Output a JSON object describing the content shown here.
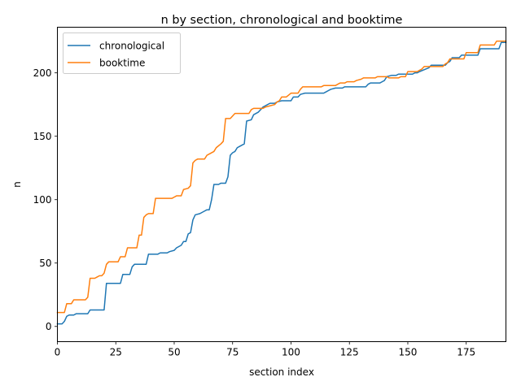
{
  "chart_data": {
    "type": "line",
    "title": "n by section, chronological and booktime",
    "xlabel": "section index",
    "ylabel": "n",
    "xlim": [
      0,
      192
    ],
    "ylim": [
      -12,
      236
    ],
    "xticks": [
      0,
      25,
      50,
      75,
      100,
      125,
      150,
      175
    ],
    "yticks": [
      0,
      50,
      100,
      150,
      200
    ],
    "grid": false,
    "legend": "top-left",
    "series": [
      {
        "name": "chronological",
        "color": "#1f77b4",
        "points": [
          [
            0,
            2
          ],
          [
            2,
            2
          ],
          [
            3,
            4
          ],
          [
            4,
            8
          ],
          [
            5,
            9
          ],
          [
            7,
            9
          ],
          [
            8,
            10
          ],
          [
            13,
            10
          ],
          [
            14,
            13
          ],
          [
            20,
            13
          ],
          [
            21,
            34
          ],
          [
            27,
            34
          ],
          [
            28,
            41
          ],
          [
            31,
            41
          ],
          [
            32,
            47
          ],
          [
            33,
            49
          ],
          [
            38,
            49
          ],
          [
            39,
            57
          ],
          [
            43,
            57
          ],
          [
            44,
            58
          ],
          [
            47,
            58
          ],
          [
            48,
            59
          ],
          [
            50,
            60
          ],
          [
            51,
            62
          ],
          [
            53,
            64
          ],
          [
            54,
            67
          ],
          [
            55,
            67
          ],
          [
            56,
            73
          ],
          [
            57,
            74
          ],
          [
            58,
            84
          ],
          [
            59,
            88
          ],
          [
            61,
            89
          ],
          [
            63,
            91
          ],
          [
            64,
            92
          ],
          [
            65,
            92
          ],
          [
            66,
            100
          ],
          [
            67,
            112
          ],
          [
            69,
            112
          ],
          [
            70,
            113
          ],
          [
            72,
            113
          ],
          [
            73,
            118
          ],
          [
            74,
            135
          ],
          [
            75,
            137
          ],
          [
            76,
            138
          ],
          [
            77,
            141
          ],
          [
            78,
            142
          ],
          [
            80,
            144
          ],
          [
            81,
            162
          ],
          [
            83,
            163
          ],
          [
            84,
            167
          ],
          [
            86,
            169
          ],
          [
            88,
            173
          ],
          [
            90,
            175
          ],
          [
            91,
            176
          ],
          [
            93,
            176
          ],
          [
            94,
            177
          ],
          [
            96,
            178
          ],
          [
            100,
            178
          ],
          [
            101,
            181
          ],
          [
            103,
            181
          ],
          [
            104,
            183
          ],
          [
            106,
            184
          ],
          [
            114,
            184
          ],
          [
            115,
            185
          ],
          [
            116,
            186
          ],
          [
            117,
            187
          ],
          [
            119,
            188
          ],
          [
            122,
            188
          ],
          [
            123,
            189
          ],
          [
            132,
            189
          ],
          [
            133,
            191
          ],
          [
            134,
            192
          ],
          [
            138,
            192
          ],
          [
            139,
            193
          ],
          [
            140,
            194
          ],
          [
            141,
            197
          ],
          [
            143,
            198
          ],
          [
            145,
            198
          ],
          [
            146,
            199
          ],
          [
            152,
            199
          ],
          [
            153,
            200
          ],
          [
            154,
            200
          ],
          [
            155,
            201
          ],
          [
            159,
            204
          ],
          [
            160,
            206
          ],
          [
            166,
            206
          ],
          [
            167,
            208
          ],
          [
            168,
            209
          ],
          [
            169,
            212
          ],
          [
            172,
            212
          ],
          [
            173,
            214
          ],
          [
            177,
            214
          ],
          [
            180,
            214
          ],
          [
            181,
            219
          ],
          [
            189,
            219
          ],
          [
            190,
            224
          ],
          [
            192,
            224
          ]
        ]
      },
      {
        "name": "booktime",
        "color": "#ff7f0e",
        "points": [
          [
            0,
            11
          ],
          [
            3,
            11
          ],
          [
            4,
            18
          ],
          [
            6,
            18
          ],
          [
            7,
            21
          ],
          [
            12,
            21
          ],
          [
            13,
            23
          ],
          [
            14,
            38
          ],
          [
            16,
            38
          ],
          [
            17,
            39
          ],
          [
            18,
            40
          ],
          [
            19,
            40
          ],
          [
            20,
            42
          ],
          [
            21,
            49
          ],
          [
            22,
            51
          ],
          [
            26,
            51
          ],
          [
            27,
            55
          ],
          [
            29,
            55
          ],
          [
            30,
            62
          ],
          [
            34,
            62
          ],
          [
            35,
            72
          ],
          [
            36,
            72
          ],
          [
            37,
            86
          ],
          [
            38,
            88
          ],
          [
            39,
            89
          ],
          [
            41,
            89
          ],
          [
            42,
            101
          ],
          [
            49,
            101
          ],
          [
            50,
            102
          ],
          [
            51,
            103
          ],
          [
            53,
            103
          ],
          [
            54,
            108
          ],
          [
            56,
            109
          ],
          [
            57,
            111
          ],
          [
            58,
            129
          ],
          [
            59,
            131
          ],
          [
            60,
            132
          ],
          [
            63,
            132
          ],
          [
            64,
            135
          ],
          [
            65,
            136
          ],
          [
            67,
            138
          ],
          [
            68,
            141
          ],
          [
            70,
            144
          ],
          [
            71,
            146
          ],
          [
            72,
            164
          ],
          [
            74,
            164
          ],
          [
            75,
            166
          ],
          [
            76,
            168
          ],
          [
            82,
            168
          ],
          [
            83,
            171
          ],
          [
            84,
            172
          ],
          [
            88,
            172
          ],
          [
            89,
            173
          ],
          [
            91,
            174
          ],
          [
            93,
            175
          ],
          [
            94,
            177
          ],
          [
            95,
            178
          ],
          [
            96,
            181
          ],
          [
            98,
            181
          ],
          [
            100,
            184
          ],
          [
            103,
            184
          ],
          [
            104,
            187
          ],
          [
            105,
            189
          ],
          [
            113,
            189
          ],
          [
            114,
            190
          ],
          [
            119,
            190
          ],
          [
            120,
            191
          ],
          [
            121,
            192
          ],
          [
            123,
            192
          ],
          [
            124,
            193
          ],
          [
            127,
            193
          ],
          [
            128,
            194
          ],
          [
            130,
            195
          ],
          [
            131,
            196
          ],
          [
            136,
            196
          ],
          [
            137,
            197
          ],
          [
            141,
            197
          ],
          [
            142,
            196
          ],
          [
            146,
            196
          ],
          [
            147,
            197
          ],
          [
            149,
            197
          ],
          [
            150,
            201
          ],
          [
            154,
            201
          ],
          [
            155,
            202
          ],
          [
            156,
            203
          ],
          [
            157,
            205
          ],
          [
            165,
            205
          ],
          [
            166,
            207
          ],
          [
            167,
            208
          ],
          [
            168,
            211
          ],
          [
            174,
            211
          ],
          [
            175,
            216
          ],
          [
            180,
            216
          ],
          [
            181,
            222
          ],
          [
            187,
            222
          ],
          [
            188,
            225
          ],
          [
            192,
            225
          ]
        ]
      }
    ]
  }
}
